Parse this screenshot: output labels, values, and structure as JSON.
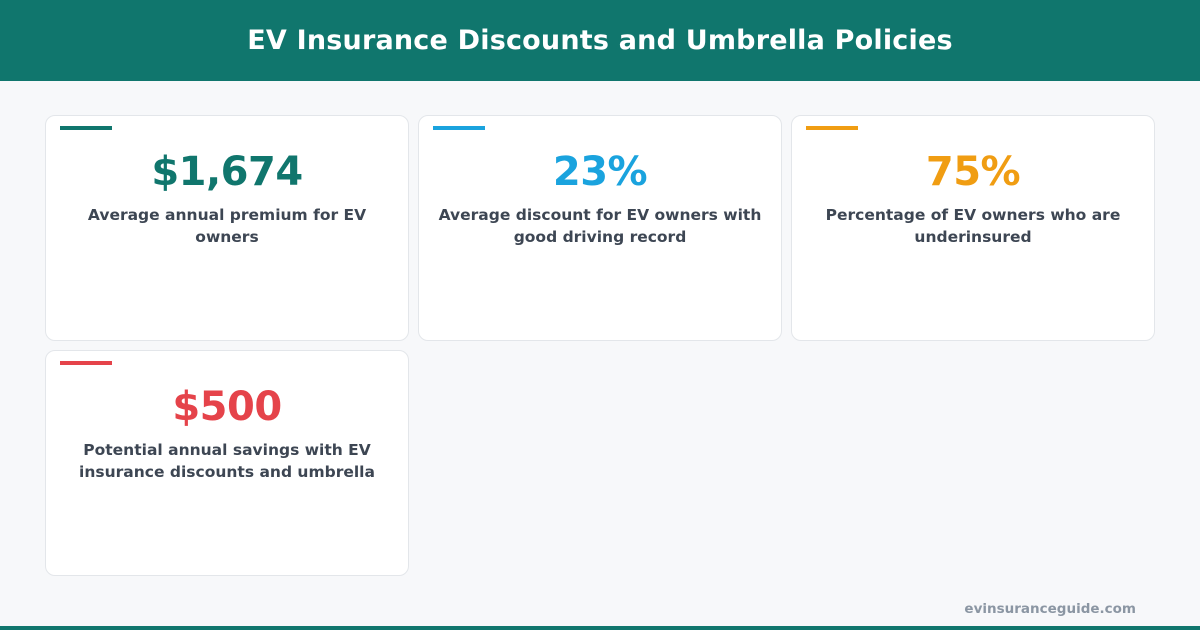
{
  "header": {
    "title": "EV Insurance Discounts and Umbrella Policies"
  },
  "cards": [
    {
      "value": "$1,674",
      "label": "Average annual premium for EV owners",
      "color": "#10766d"
    },
    {
      "value": "23%",
      "label": "Average discount for EV owners with good driving record",
      "color": "#1aa3de"
    },
    {
      "value": "75%",
      "label": "Percentage of EV owners who are underinsured",
      "color": "#f09d12"
    },
    {
      "value": "$500",
      "label": "Potential annual savings with EV insurance discounts and umbrella",
      "color": "#e5434a"
    }
  ],
  "footer": {
    "domain": "evinsuranceguide.com"
  },
  "colors": {
    "brand": "#10766d",
    "background": "#f7f8fa",
    "text": "#3d4653"
  }
}
